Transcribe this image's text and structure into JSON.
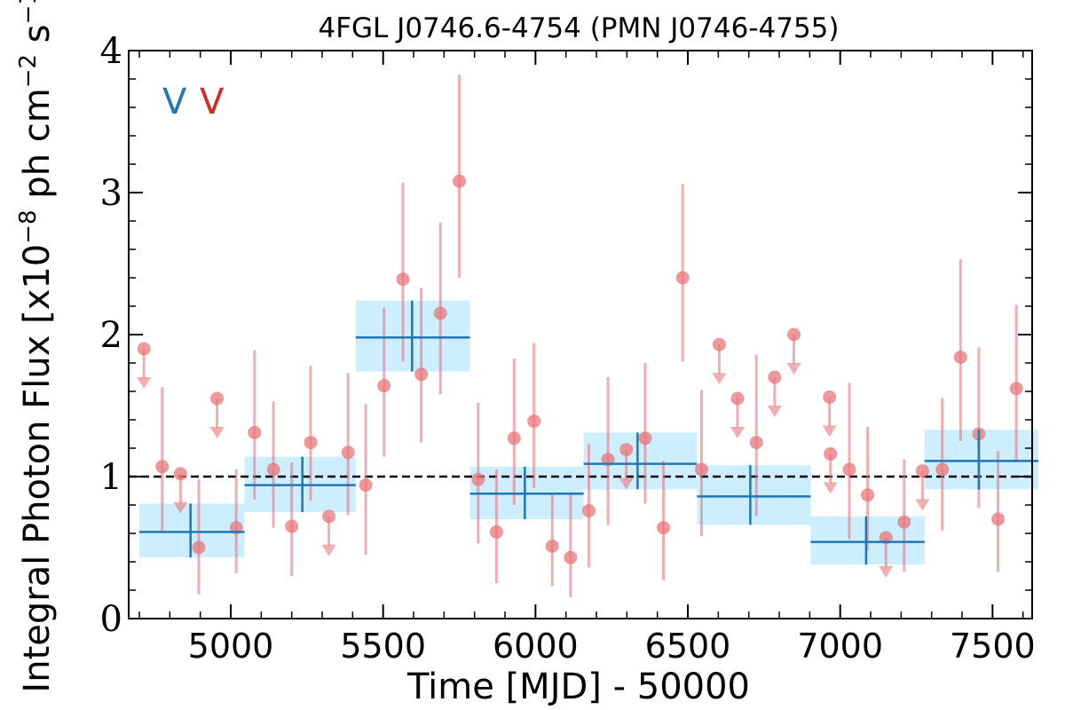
{
  "chart_data": {
    "type": "scatter",
    "title": "4FGL J0746.6-4754 (PMN J0746-4755)",
    "xlabel": "Time [MJD] - 50000",
    "ylabel_main": "Integral Photon Flux [x10",
    "ylabel_exp1": "−8",
    "ylabel_mid": " ph cm",
    "ylabel_exp2": "−2",
    "ylabel_s": " s",
    "ylabel_exp3": "−1",
    "ylabel_end": "]",
    "xlim": [
      4665,
      7630
    ],
    "ylim": [
      0,
      4
    ],
    "x_ticks": [
      5000,
      5500,
      6000,
      6500,
      7000,
      7500
    ],
    "y_ticks": [
      0,
      1,
      2,
      3,
      4
    ],
    "reference_line_y": 1.0,
    "legend": {
      "position": "top-left",
      "entries": [
        {
          "label": "V",
          "color": "#1f77b4"
        },
        {
          "label": "V",
          "color": "#d62728"
        }
      ]
    },
    "binned_series": {
      "color": "#1f77b4",
      "band_color": "#cdeeff",
      "bins": [
        {
          "x_start": 4700,
          "x_end": 5045,
          "x_center": 4868,
          "y": 0.61,
          "y_low": 0.43,
          "y_high": 0.81
        },
        {
          "x_start": 5045,
          "x_end": 5410,
          "x_center": 5235,
          "y": 0.94,
          "y_low": 0.75,
          "y_high": 1.14
        },
        {
          "x_start": 5410,
          "x_end": 5785,
          "x_center": 5595,
          "y": 1.98,
          "y_low": 1.74,
          "y_high": 2.24
        },
        {
          "x_start": 5785,
          "x_end": 6158,
          "x_center": 5965,
          "y": 0.88,
          "y_low": 0.7,
          "y_high": 1.07
        },
        {
          "x_start": 6158,
          "x_end": 6530,
          "x_center": 6335,
          "y": 1.09,
          "y_low": 0.91,
          "y_high": 1.31
        },
        {
          "x_start": 6530,
          "x_end": 6903,
          "x_center": 6705,
          "y": 0.86,
          "y_low": 0.66,
          "y_high": 1.08
        },
        {
          "x_start": 6903,
          "x_end": 7277,
          "x_center": 7085,
          "y": 0.54,
          "y_low": 0.38,
          "y_high": 0.72
        },
        {
          "x_start": 7277,
          "x_end": 7650,
          "x_center": 7455,
          "y": 1.11,
          "y_low": 0.91,
          "y_high": 1.33
        }
      ]
    },
    "fine_series": {
      "color": "#e8767a",
      "points": [
        {
          "x": 4715,
          "y": 1.9,
          "upper_limit": true
        },
        {
          "x": 4775,
          "y": 1.07,
          "y_low": 0.62,
          "y_high": 1.63
        },
        {
          "x": 4835,
          "y": 1.02,
          "upper_limit": true
        },
        {
          "x": 4895,
          "y": 0.5,
          "y_low": 0.17,
          "y_high": 0.98
        },
        {
          "x": 4955,
          "y": 1.55,
          "upper_limit": true
        },
        {
          "x": 5018,
          "y": 0.64,
          "y_low": 0.32,
          "y_high": 1.05
        },
        {
          "x": 5078,
          "y": 1.31,
          "y_low": 0.84,
          "y_high": 1.89
        },
        {
          "x": 5140,
          "y": 1.05,
          "y_low": 0.64,
          "y_high": 1.53
        },
        {
          "x": 5200,
          "y": 0.65,
          "y_low": 0.3,
          "y_high": 1.1
        },
        {
          "x": 5262,
          "y": 1.24,
          "y_low": 0.83,
          "y_high": 1.78
        },
        {
          "x": 5322,
          "y": 0.72,
          "upper_limit": true
        },
        {
          "x": 5385,
          "y": 1.17,
          "y_low": 0.73,
          "y_high": 1.73
        },
        {
          "x": 5443,
          "y": 0.94,
          "y_low": 0.45,
          "y_high": 1.51
        },
        {
          "x": 5503,
          "y": 1.64,
          "y_low": 1.14,
          "y_high": 2.19
        },
        {
          "x": 5565,
          "y": 2.39,
          "y_low": 1.81,
          "y_high": 3.07
        },
        {
          "x": 5625,
          "y": 1.72,
          "y_low": 1.24,
          "y_high": 2.33
        },
        {
          "x": 5688,
          "y": 2.15,
          "y_low": 1.58,
          "y_high": 2.79
        },
        {
          "x": 5750,
          "y": 3.08,
          "y_low": 2.4,
          "y_high": 3.83
        },
        {
          "x": 5812,
          "y": 0.98,
          "y_low": 0.53,
          "y_high": 1.52
        },
        {
          "x": 5872,
          "y": 0.61,
          "y_low": 0.25,
          "y_high": 1.05
        },
        {
          "x": 5930,
          "y": 1.27,
          "y_low": 0.8,
          "y_high": 1.83
        },
        {
          "x": 5995,
          "y": 1.39,
          "y_low": 0.92,
          "y_high": 1.94
        },
        {
          "x": 6055,
          "y": 0.51,
          "y_low": 0.23,
          "y_high": 0.88
        },
        {
          "x": 6115,
          "y": 0.43,
          "y_low": 0.15,
          "y_high": 0.89
        },
        {
          "x": 6175,
          "y": 0.76,
          "y_low": 0.36,
          "y_high": 1.23
        },
        {
          "x": 6238,
          "y": 1.12,
          "y_low": 0.66,
          "y_high": 1.7
        },
        {
          "x": 6298,
          "y": 1.19,
          "upper_limit": true
        },
        {
          "x": 6360,
          "y": 1.27,
          "y_low": 0.81,
          "y_high": 1.8
        },
        {
          "x": 6420,
          "y": 0.64,
          "y_low": 0.27,
          "y_high": 1.11
        },
        {
          "x": 6483,
          "y": 2.4,
          "y_low": 1.81,
          "y_high": 3.06
        },
        {
          "x": 6545,
          "y": 1.05,
          "y_low": 0.58,
          "y_high": 1.61
        },
        {
          "x": 6603,
          "y": 1.93,
          "upper_limit": true
        },
        {
          "x": 6663,
          "y": 1.55,
          "upper_limit": true
        },
        {
          "x": 6725,
          "y": 1.24,
          "y_low": 0.72,
          "y_high": 1.86
        },
        {
          "x": 6785,
          "y": 1.7,
          "upper_limit": true
        },
        {
          "x": 6848,
          "y": 2.0,
          "upper_limit": true
        },
        {
          "x": 6965,
          "y": 1.56,
          "upper_limit": true
        },
        {
          "x": 6968,
          "y": 1.16,
          "upper_limit": true
        },
        {
          "x": 7030,
          "y": 1.05,
          "y_low": 0.56,
          "y_high": 1.66
        },
        {
          "x": 7090,
          "y": 0.87,
          "y_low": 0.48,
          "y_high": 1.35
        },
        {
          "x": 7150,
          "y": 0.57,
          "upper_limit": true
        },
        {
          "x": 7210,
          "y": 0.68,
          "y_low": 0.33,
          "y_high": 1.12
        },
        {
          "x": 7270,
          "y": 1.04,
          "upper_limit": true
        },
        {
          "x": 7335,
          "y": 1.05,
          "y_low": 0.62,
          "y_high": 1.55
        },
        {
          "x": 7395,
          "y": 1.84,
          "y_low": 1.25,
          "y_high": 2.53
        },
        {
          "x": 7455,
          "y": 1.3,
          "y_low": 0.78,
          "y_high": 1.91
        },
        {
          "x": 7518,
          "y": 0.7,
          "y_low": 0.33,
          "y_high": 1.18
        },
        {
          "x": 7578,
          "y": 1.62,
          "y_low": 1.1,
          "y_high": 2.21
        }
      ]
    }
  }
}
